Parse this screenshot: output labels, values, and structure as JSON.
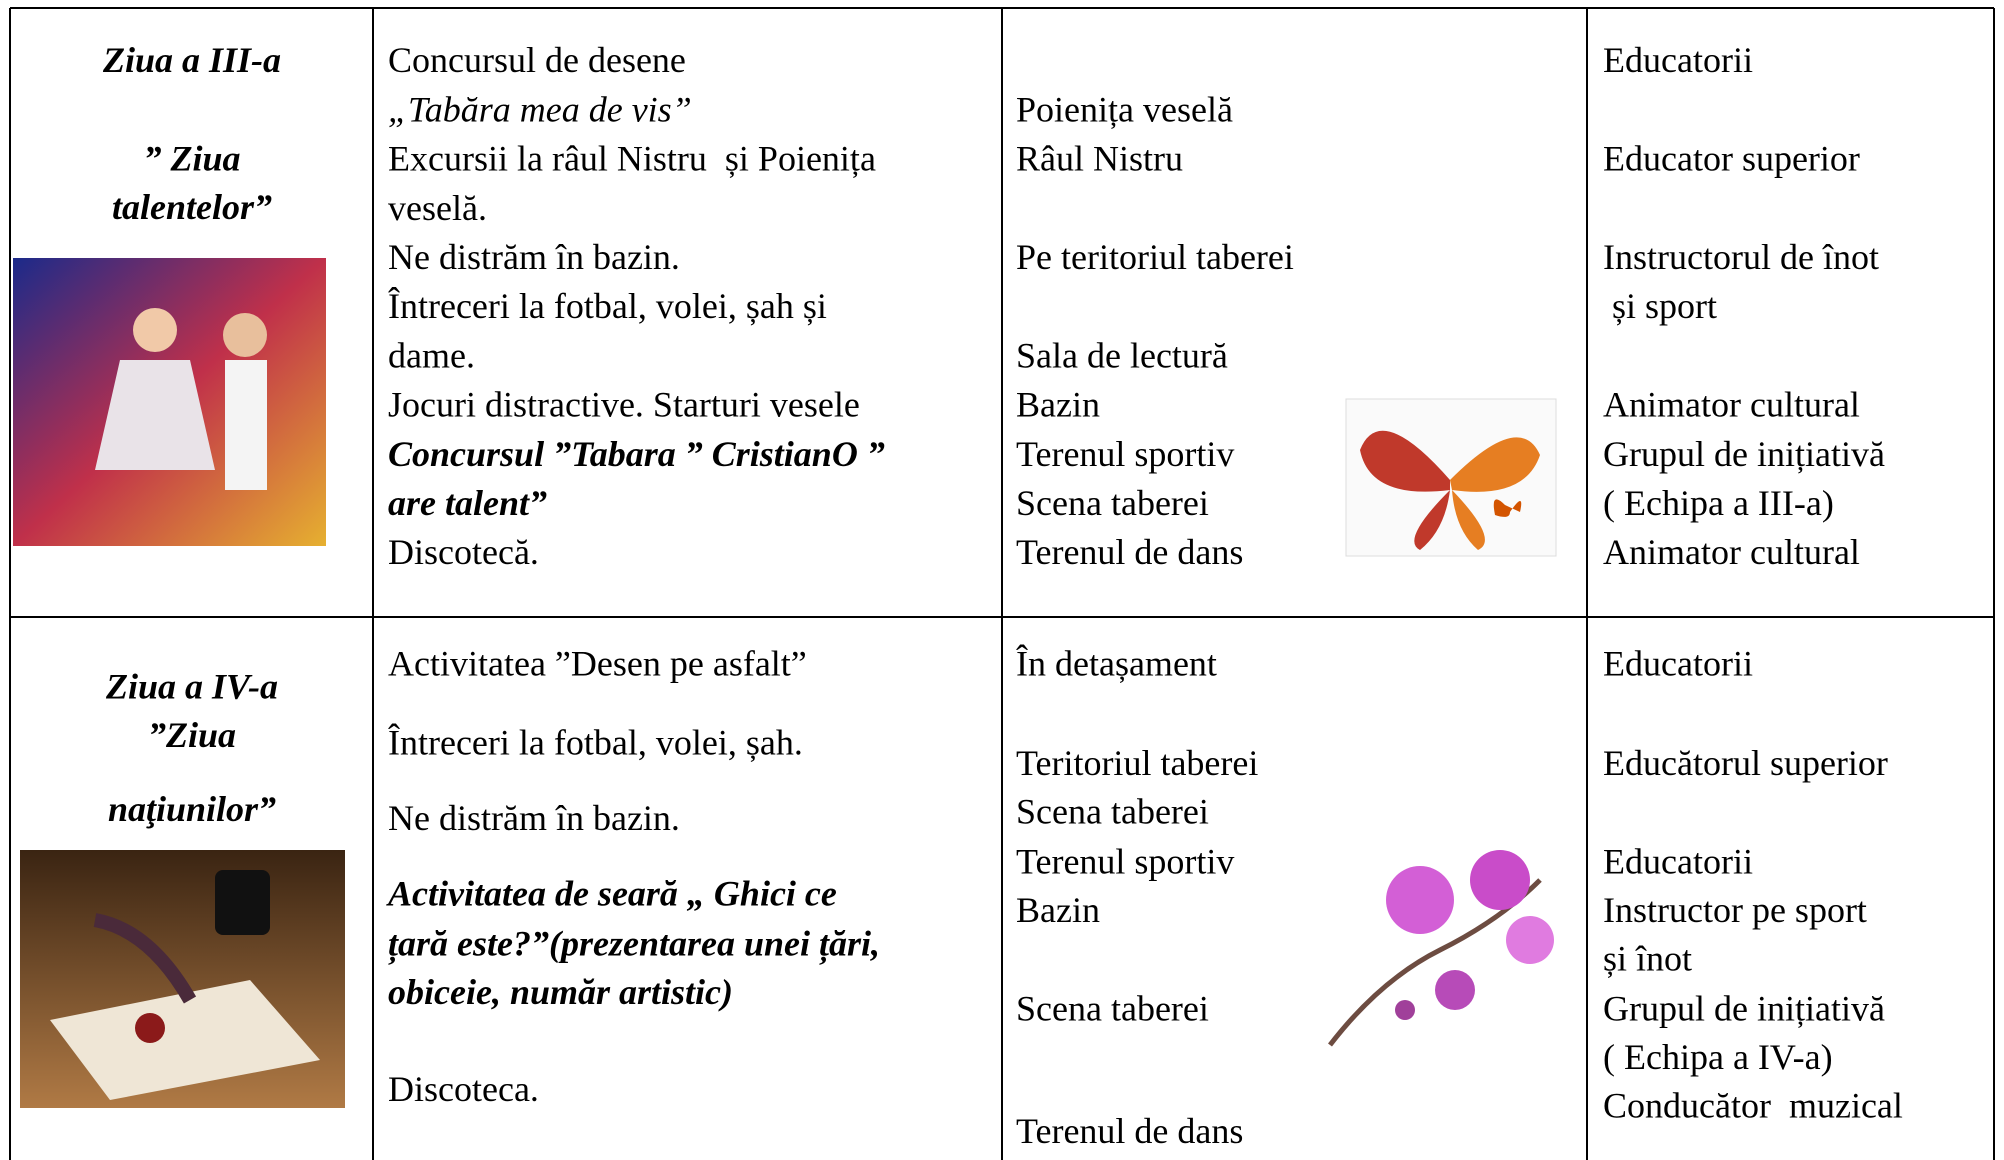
{
  "table": {
    "rows": [
      {
        "cells": [
          {
            "lines": [
              "Ziua a III-a",
              "” Ziua",
              "talentelor”"
            ]
          },
          {
            "lines": [
              "Concursul de desene",
              "„Tabăra mea de vis”",
              "Excursii la râul Nistru  și Poienița",
              "veselă.",
              "Ne distrăm în bazin.",
              "Întreceri la fotbal, volei, șah și",
              "dame.",
              "Jocuri distractive. Starturi vesele",
              "Concursul ”Tabara ” CristianO ”",
              "are talent”",
              "Discotecă."
            ]
          },
          {
            "lines": [
              "Poienița veselă",
              "Râul Nistru",
              "Pe teritoriul taberei",
              "Sala de lectură",
              "Bazin",
              "Terenul sportiv",
              "Scena taberei",
              "Terenul de dans"
            ]
          },
          {
            "lines": [
              "Educatorii",
              "Educator superior",
              "Instructorul de înot",
              " și sport",
              "Animator cultural",
              "Grupul de inițiativă",
              "( Echipa a III-a)",
              "Animator cultural"
            ]
          }
        ]
      },
      {
        "cells": [
          {
            "lines": [
              "Ziua a IV-a",
              "”Ziua",
              "naţiunilor”"
            ]
          },
          {
            "lines": [
              "Activitatea ”Desen pe asfalt”",
              "Întreceri la fotbal, volei, șah.",
              "Ne distrăm în bazin.",
              "Activitatea de seară „ Ghici ce",
              "țară este?”(prezentarea unei țări,",
              "obiceie, număr artistic)",
              "Discoteca."
            ]
          },
          {
            "lines": [
              "În detașament",
              "Teritoriul taberei",
              "Scena taberei",
              "Terenul sportiv",
              "Bazin",
              "Scena taberei",
              "Terenul de dans"
            ]
          },
          {
            "lines": [
              "Educatorii",
              "Educătorul superior",
              "Educatorii",
              "Instructor pe sport",
              "și înot",
              "Grupul de inițiativă",
              "( Echipa a IV-a)",
              "Conducător  muzical"
            ]
          }
        ]
      }
    ]
  }
}
